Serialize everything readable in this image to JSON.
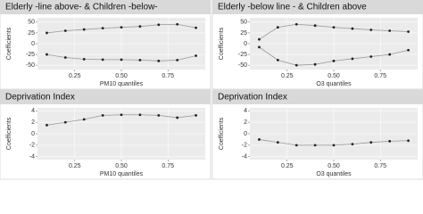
{
  "chart_data": [
    {
      "type": "line",
      "title": "Elderly -line above- & Children -below-",
      "xlabel": "PM10 quantiles",
      "ylabel": "Coefficients",
      "x": [
        0.1,
        0.2,
        0.3,
        0.4,
        0.5,
        0.6,
        0.7,
        0.8,
        0.9
      ],
      "series": [
        {
          "color": "#222",
          "values": [
            25,
            30,
            33,
            36,
            38,
            40,
            44,
            45,
            37
          ]
        },
        {
          "color": "#222",
          "values": [
            -25,
            -32,
            -36,
            -37,
            -37,
            -38,
            -40,
            -38,
            -28
          ]
        }
      ],
      "xlim": [
        0.05,
        0.95
      ],
      "xticks": [
        0.25,
        {
          "value": 0.5,
          "label": "0.50"
        },
        0.75
      ],
      "ylim": [
        -60,
        60
      ],
      "yticks": [
        -50,
        -25,
        0,
        25,
        50
      ],
      "grid": true
    },
    {
      "type": "line",
      "title": "Elderly -below line - & Children above",
      "xlabel": "O3 quantiles",
      "ylabel": "Coefficients",
      "x": [
        0.1,
        0.2,
        0.3,
        0.4,
        0.5,
        0.6,
        0.7,
        0.8,
        0.9
      ],
      "series": [
        {
          "color": "#222",
          "values": [
            10,
            38,
            45,
            42,
            38,
            35,
            32,
            30,
            28
          ]
        },
        {
          "color": "#222",
          "values": [
            -8,
            -38,
            -50,
            -48,
            -40,
            -35,
            -30,
            -25,
            -15
          ]
        }
      ],
      "xlim": [
        0.05,
        0.95
      ],
      "xticks": [
        0.25,
        {
          "value": 0.5,
          "label": "0.50"
        },
        0.75
      ],
      "ylim": [
        -60,
        60
      ],
      "yticks": [
        -50,
        -25,
        0,
        25,
        50
      ],
      "grid": true
    },
    {
      "type": "line",
      "title": "Deprivation Index",
      "xlabel": "PM10 quantiles",
      "ylabel": "Coefficients",
      "x": [
        0.1,
        0.2,
        0.3,
        0.4,
        0.5,
        0.6,
        0.7,
        0.8,
        0.9
      ],
      "series": [
        {
          "color": "#222",
          "values": [
            1.5,
            2,
            2.5,
            3.2,
            3.3,
            3.3,
            3.2,
            2.8,
            3.2
          ]
        }
      ],
      "xlim": [
        0.05,
        0.95
      ],
      "xticks": [
        0.25,
        {
          "value": 0.5,
          "label": "0.50"
        },
        0.75
      ],
      "ylim": [
        -4.5,
        4.5
      ],
      "yticks": [
        -4,
        -2,
        0,
        2,
        4
      ],
      "grid": true
    },
    {
      "type": "line",
      "title": "Deprivation Index",
      "xlabel": "O3 quantiles",
      "ylabel": "Coefficients",
      "x": [
        0.1,
        0.2,
        0.3,
        0.4,
        0.5,
        0.6,
        0.7,
        0.8,
        0.9
      ],
      "series": [
        {
          "color": "#222",
          "values": [
            -1,
            -1.5,
            -2,
            -2,
            -2,
            -1.8,
            -1.5,
            -1.3,
            -1.2
          ]
        }
      ],
      "xlim": [
        0.05,
        0.95
      ],
      "xticks": [
        0.25,
        {
          "value": 0.5,
          "label": "0.50"
        },
        0.75
      ],
      "ylim": [
        -4.5,
        4.5
      ],
      "yticks": [
        -4,
        -2,
        0,
        2,
        4
      ],
      "grid": true
    }
  ]
}
